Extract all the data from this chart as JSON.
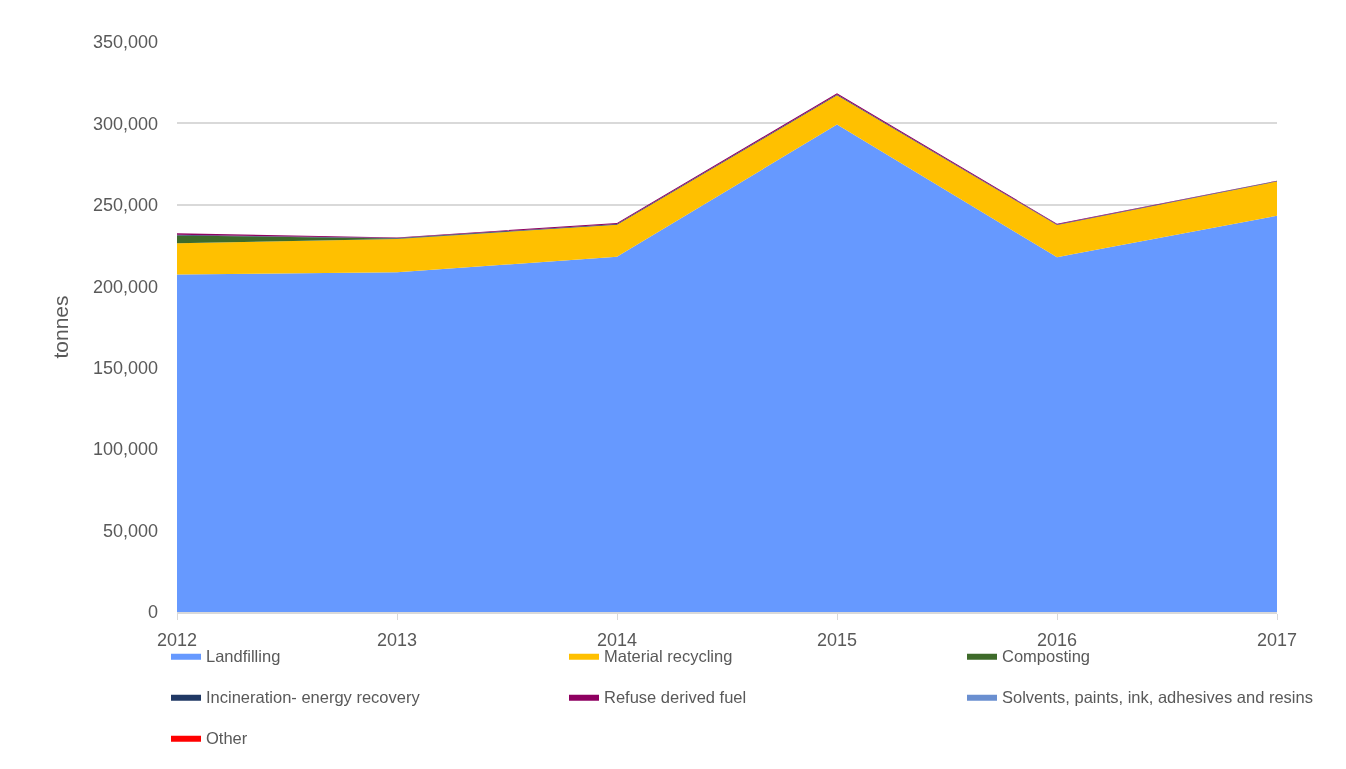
{
  "chart_data": {
    "type": "area",
    "stacked": true,
    "ylabel": "tonnes",
    "x": [
      2012,
      2013,
      2014,
      2015,
      2016,
      2017
    ],
    "xlim": [
      2012,
      2017
    ],
    "xticks": [
      2012,
      2013,
      2014,
      2015,
      2016,
      2017
    ],
    "ylim": [
      0,
      350000
    ],
    "yticks": [
      0,
      {
        "value": 50000,
        "label": "50,000"
      },
      {
        "value": 100000,
        "label": "100,000"
      },
      {
        "value": 150000,
        "label": "150,000"
      },
      {
        "value": 200000,
        "label": "200,000"
      },
      {
        "value": 250000,
        "label": "250,000"
      },
      {
        "value": 300000,
        "label": "300,000"
      },
      {
        "value": 350000,
        "label": "350,000"
      }
    ],
    "grid": "y",
    "legend": "bottom",
    "series": [
      {
        "name": "Landfilling",
        "color": "#6699ff",
        "values": [
          207300,
          208600,
          218200,
          299300,
          217900,
          243300
        ]
      },
      {
        "name": "Material recycling",
        "color": "#ffc000",
        "values": [
          19200,
          20400,
          19600,
          18000,
          19700,
          21100
        ]
      },
      {
        "name": "Composting",
        "color": "#3e6b2a",
        "values": [
          4700,
          300,
          0,
          0,
          0,
          0
        ]
      },
      {
        "name": "Incineration- energy recovery",
        "color": "#203864",
        "values": [
          400,
          400,
          400,
          400,
          300,
          200
        ]
      },
      {
        "name": "Refuse derived fuel",
        "color": "#8e0060",
        "values": [
          900,
          300,
          700,
          800,
          500,
          200
        ]
      },
      {
        "name": "Solvents, paints, ink, adhesives and resins",
        "color": "#6a8fd0",
        "values": [
          null,
          null,
          null,
          null,
          null,
          null
        ]
      },
      {
        "name": "Other",
        "color": "#ff0000",
        "values": [
          null,
          null,
          null,
          null,
          null,
          null
        ]
      }
    ]
  }
}
